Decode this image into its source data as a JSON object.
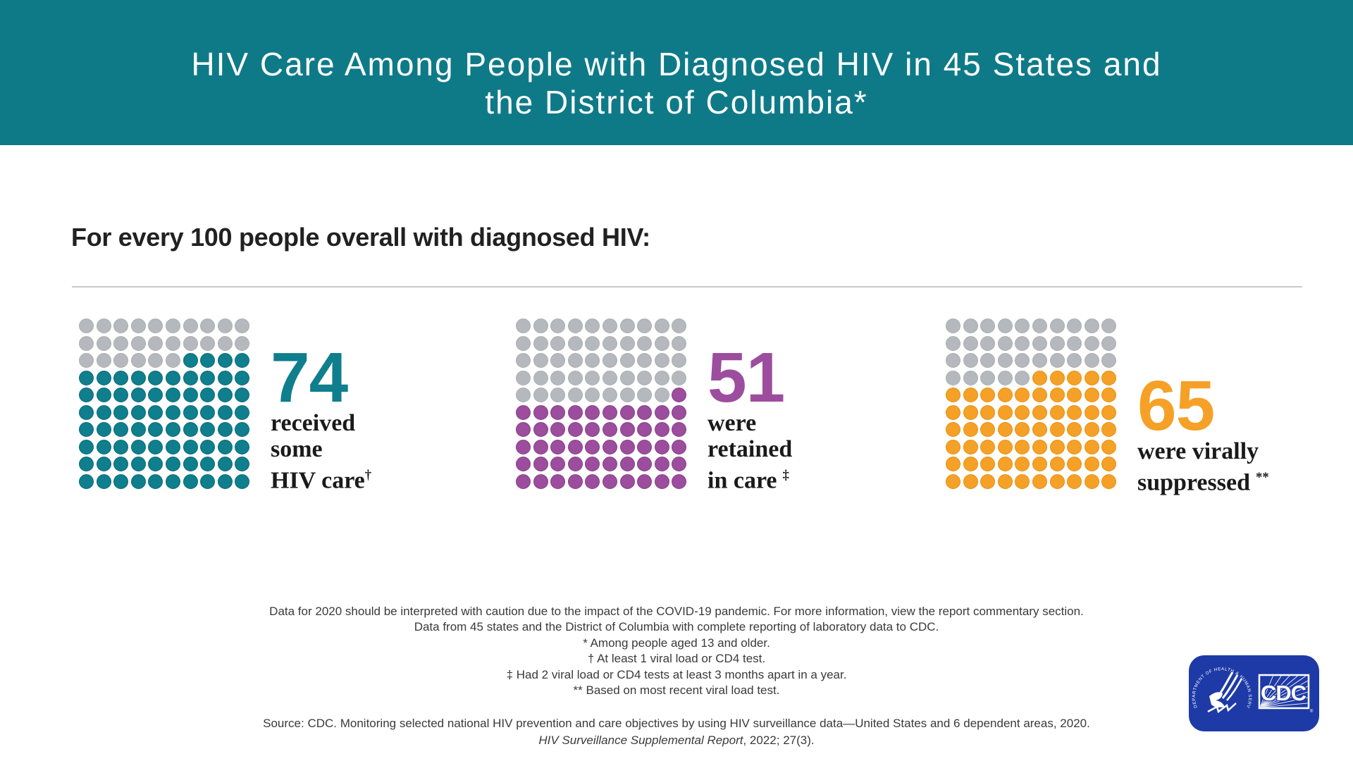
{
  "header": {
    "bg_color": "#0e7a88",
    "title_line1": "HIV Care Among People with Diagnosed HIV in 45 States and",
    "title_line2": "the District of Columbia*"
  },
  "intro": {
    "text": "For every 100 people overall with diagnosed HIV:"
  },
  "chart_data": {
    "type": "waffle",
    "title": "HIV Care Among People with Diagnosed HIV in 45 States and the District of Columbia*",
    "subtitle": "For every 100 people overall with diagnosed HIV:",
    "units_per_grid": 100,
    "grid_rows": 10,
    "grid_cols": 10,
    "fill_rule": "filled dots count from bottom row upward; partial row fills from the right",
    "unfilled_color": "#b5b9bd",
    "unfilled_border": "#a9aeb3",
    "series": [
      {
        "name": "received some HIV care†",
        "value": 74,
        "color": "#0f7e8d",
        "border_color": "#0b6b79"
      },
      {
        "name": "were retained in care ‡",
        "value": 51,
        "color": "#9c4d9e",
        "border_color": "#863f88"
      },
      {
        "name": "were virally suppressed **",
        "value": 65,
        "color": "#f5a127",
        "border_color": "#e58f12"
      }
    ]
  },
  "stats": [
    {
      "value": "74",
      "color": "#0f7e8d",
      "label_lines": [
        {
          "text": "received"
        },
        {
          "text": "some"
        },
        {
          "text": "HIV care",
          "sup": "†",
          "gap": false
        }
      ]
    },
    {
      "value": "51",
      "color": "#9c4d9e",
      "label_lines": [
        {
          "text": "were"
        },
        {
          "text": "retained"
        },
        {
          "text": "in care",
          "sup": "‡",
          "gap": true
        }
      ]
    },
    {
      "value": "65",
      "color": "#f5a127",
      "label_lines": [
        {
          "text": "were virally"
        },
        {
          "text": "suppressed",
          "sup": "**",
          "gap": true
        }
      ]
    }
  ],
  "footnotes": [
    "Data for 2020 should be interpreted with caution due to the impact of the COVID-19 pandemic. For more information, view the report commentary section.",
    "Data from 45 states and the District of Columbia with complete reporting of laboratory data to CDC.",
    "* Among people aged 13 and older.",
    "† At least 1 viral load or CD4 test.",
    "‡ Had 2 viral load or CD4 tests at least 3 months apart in a year.",
    "** Based on most recent viral load test."
  ],
  "source": {
    "line1": "Source: CDC. Monitoring selected national HIV prevention and care objectives by using HIV surveillance data—United States and 6 dependent areas, 2020.",
    "line2_italic": "HIV Surveillance Supplemental Report",
    "line2_rest": ", 2022; 27(3)."
  },
  "logo": {
    "bg_color": "#1e3aa6",
    "acronym": "CDC",
    "ring_text": "DEPARTMENT OF HEALTH & HUMAN SERVICES USA",
    "registered": "®"
  }
}
